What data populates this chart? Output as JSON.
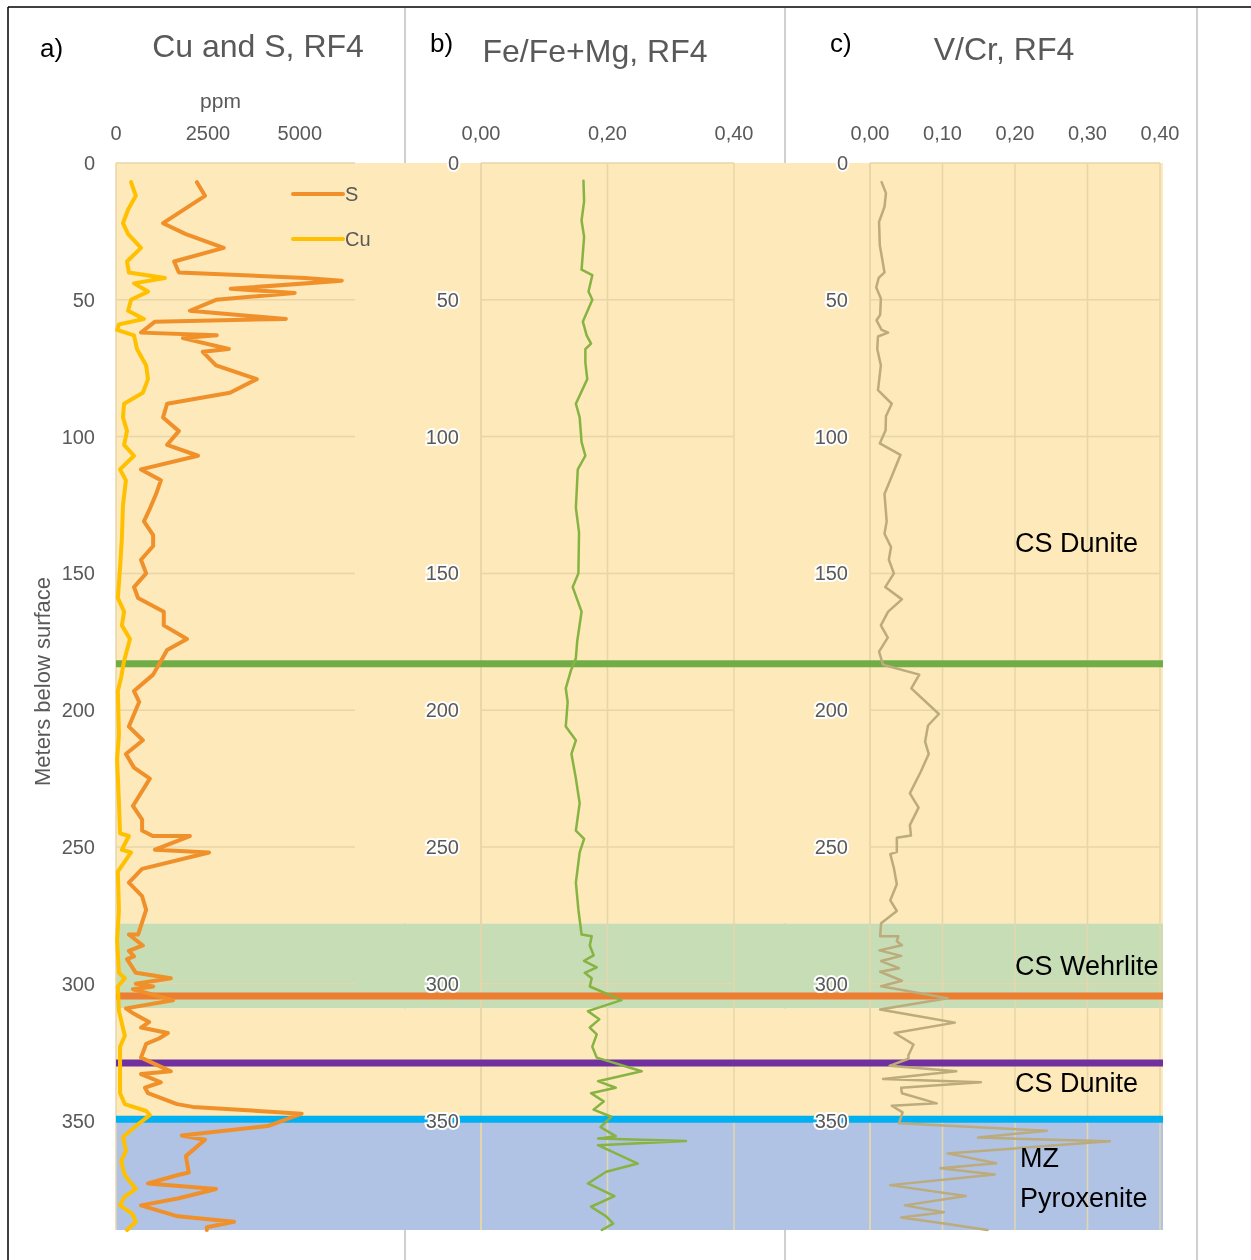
{
  "chart_data": [
    {
      "type": "line",
      "title": "Cu and S, RF4",
      "xlabel": "ppm",
      "ylabel": "Meters below surface",
      "annotations": [
        "a)"
      ],
      "xlim": [
        0,
        6500
      ],
      "xticks": [
        0,
        2500,
        5000
      ],
      "ylim": [
        390,
        0
      ],
      "yticks": [
        0,
        50,
        100,
        150,
        200,
        250,
        300,
        350
      ],
      "grid": "y",
      "legend": "top right",
      "series": [
        {
          "name": "S",
          "color": "#f0902a",
          "x": [
            2200,
            2420,
            1280,
            1900,
            2930,
            1580,
            1710,
            5140,
            6140,
            3120,
            4860,
            2720,
            2010,
            4620,
            1060,
            680,
            2740,
            1820,
            3070,
            2360,
            2720,
            3830,
            3100,
            1390,
            1280,
            1710,
            1390,
            2230,
            680,
            1220,
            1090,
            900,
            760,
            1010,
            1010,
            680,
            820,
            490,
            600,
            1300,
            1300,
            1930,
            1390,
            1010,
            490,
            630,
            350,
            730,
            270,
            490,
            920,
            460,
            710,
            710,
            1000,
            2010,
            1060,
            2530,
            710,
            350,
            710,
            820,
            600,
            350,
            730,
            350,
            490,
            300,
            540,
            1490,
            540,
            1010,
            460,
            1550,
            270,
            490,
            900,
            680,
            1410,
            1170,
            820,
            680,
            1490,
            680,
            1220,
            790,
            870,
            1660,
            2090,
            5050,
            4130,
            1790,
            2420,
            1900,
            1980,
            1660,
            870,
            2720,
            1680,
            680,
            1680,
            3210,
            2470,
            2470
          ],
          "values": [
            7,
            12,
            22,
            26,
            31,
            36,
            40,
            42,
            43,
            46,
            47.5,
            50,
            54,
            57,
            58,
            62,
            63,
            64,
            68,
            69,
            74,
            79,
            84,
            88,
            93,
            98,
            103,
            107,
            112,
            116,
            121,
            127,
            131,
            136,
            140,
            145,
            150,
            155,
            159,
            164,
            169,
            174,
            178,
            187,
            193,
            197,
            206,
            211,
            216,
            221,
            225,
            235,
            240,
            244,
            246,
            246,
            251,
            252,
            258,
            263,
            268,
            273,
            282,
            282,
            286,
            288,
            290,
            291,
            296,
            298,
            300,
            301,
            302,
            306,
            309,
            311,
            314,
            316,
            318,
            320,
            322,
            327,
            332,
            333,
            336,
            338,
            340,
            344,
            345,
            347.5,
            352,
            355.5,
            357,
            363,
            369,
            370,
            373,
            375,
            378.5,
            381,
            385,
            387,
            389,
            390
          ]
        },
        {
          "name": "Cu",
          "color": "#ffc000",
          "x": [
            410,
            540,
            330,
            190,
            330,
            680,
            300,
            350,
            1330,
            490,
            870,
            410,
            330,
            760,
            80,
            30,
            490,
            570,
            820,
            870,
            730,
            220,
            190,
            300,
            220,
            490,
            110,
            270,
            190,
            160,
            110,
            50,
            220,
            160,
            380,
            220,
            140,
            50,
            80,
            30,
            80,
            110,
            350,
            160,
            410,
            50,
            80,
            30,
            80,
            240,
            50,
            80,
            240,
            110,
            110,
            240,
            820,
            920,
            540,
            190,
            270,
            140,
            240,
            540,
            220,
            110,
            440,
            540,
            300
          ],
          "values": [
            7,
            12,
            17,
            22,
            26,
            31,
            36,
            40,
            42,
            44,
            47,
            50,
            54,
            57,
            59,
            61,
            63,
            68,
            74,
            79,
            84,
            88,
            93,
            98,
            103,
            107,
            112,
            116,
            125,
            137,
            148,
            159,
            164,
            169,
            174,
            182,
            188,
            193,
            209,
            218,
            234,
            245,
            246,
            251,
            252,
            259,
            273,
            284,
            296,
            298,
            301,
            310,
            319,
            323,
            340,
            344,
            346.5,
            348,
            352,
            356,
            361,
            365,
            370,
            375,
            378,
            381,
            384,
            387,
            390
          ]
        }
      ],
      "bands": [
        {
          "axis": "y",
          "from": 0,
          "to": 278,
          "color": "#fde9b9"
        },
        {
          "axis": "y",
          "from": 278,
          "to": 309,
          "color": "#c6ddb6"
        },
        {
          "axis": "y",
          "from": 309,
          "to": 350,
          "color": "#fde9b9"
        },
        {
          "axis": "y",
          "from": 350,
          "to": 390,
          "color": "#b0c3e5"
        }
      ],
      "ref_lines": [
        {
          "axis": "y",
          "value": 183,
          "color": "#70ad47"
        },
        {
          "axis": "y",
          "value": 304.5,
          "color": "#ed7d31"
        },
        {
          "axis": "y",
          "value": 329,
          "color": "#7030a0"
        },
        {
          "axis": "y",
          "value": 349.5,
          "color": "#00b0f0"
        }
      ]
    },
    {
      "type": "line",
      "title": "Fe/Fe+Mg, RF4",
      "annotations": [
        "b)"
      ],
      "xlim": [
        0,
        0.4
      ],
      "xticks": [
        {
          "value": 0,
          "label": "0,00"
        },
        {
          "value": 0.2,
          "label": "0,20"
        },
        {
          "value": 0.4,
          "label": "0,40"
        }
      ],
      "ylim": [
        390,
        0
      ],
      "yticks": [
        0,
        50,
        100,
        150,
        200,
        250,
        300,
        350
      ],
      "grid": true,
      "series": [
        {
          "color": "#86b341",
          "x": [
            0.162,
            0.163,
            0.159,
            0.163,
            0.159,
            0.176,
            0.17,
            0.176,
            0.161,
            0.167,
            0.174,
            0.165,
            0.165,
            0.168,
            0.15,
            0.156,
            0.159,
            0.165,
            0.153,
            0.15,
            0.155,
            0.154,
            0.145,
            0.159,
            0.152,
            0.15,
            0.142,
            0.134,
            0.137,
            0.134,
            0.15,
            0.143,
            0.15,
            0.156,
            0.15,
            0.163,
            0.156,
            0.15,
            0.154,
            0.159,
            0.175,
            0.172,
            0.178,
            0.163,
            0.183,
            0.164,
            0.175,
            0.172,
            0.222,
            0.169,
            0.187,
            0.172,
            0.183,
            0.176,
            0.183,
            0.254,
            0.185,
            0.213,
            0.174,
            0.194,
            0.178,
            0.206,
            0.189,
            0.213,
            0.185,
            0.324,
            0.185,
            0.248,
            0.198,
            0.169,
            0.211,
            0.174,
            0.198,
            0.209,
            0.191
          ],
          "values": [
            6.5,
            14,
            21,
            27,
            39,
            41,
            47,
            50,
            58,
            63,
            66,
            68,
            73,
            79,
            88,
            93,
            102,
            107,
            112,
            126,
            135,
            150,
            155,
            164,
            175,
            181,
            185.6,
            192,
            197,
            206,
            211,
            216,
            225,
            234,
            244,
            247,
            252,
            263,
            273,
            282,
            282.6,
            286,
            289.6,
            291.6,
            294,
            296,
            298,
            301,
            306,
            310,
            313,
            316,
            318.5,
            323,
            327,
            332,
            335.6,
            338,
            340,
            343,
            346,
            348.6,
            352.4,
            355.7,
            356.6,
            357.5,
            359,
            365.7,
            368.7,
            373,
            377.6,
            381.5,
            385,
            387.7,
            390
          ]
        }
      ],
      "bands": [
        {
          "axis": "y",
          "from": 0,
          "to": 278,
          "color": "#fde9b9"
        },
        {
          "axis": "y",
          "from": 278,
          "to": 309,
          "color": "#c6ddb6"
        },
        {
          "axis": "y",
          "from": 309,
          "to": 350,
          "color": "#fde9b9"
        },
        {
          "axis": "y",
          "from": 350,
          "to": 390,
          "color": "#b0c3e5"
        }
      ],
      "ref_lines": [
        {
          "axis": "y",
          "value": 183,
          "color": "#70ad47"
        },
        {
          "axis": "y",
          "value": 304.5,
          "color": "#ed7d31"
        },
        {
          "axis": "y",
          "value": 329,
          "color": "#7030a0"
        },
        {
          "axis": "y",
          "value": 349.5,
          "color": "#00b0f0"
        }
      ]
    },
    {
      "type": "line",
      "title": "V/Cr, RF4",
      "annotations": [
        "c)"
      ],
      "xlim": [
        0,
        0.4
      ],
      "xticks": [
        {
          "value": 0,
          "label": "0,00"
        },
        {
          "value": 0.1,
          "label": "0,10"
        },
        {
          "value": 0.2,
          "label": "0,20"
        },
        {
          "value": 0.3,
          "label": "0,30"
        },
        {
          "value": 0.4,
          "label": "0,40"
        }
      ],
      "ylim": [
        390,
        0
      ],
      "yticks": [
        0,
        50,
        100,
        150,
        200,
        250,
        300,
        350
      ],
      "grid": true,
      "series": [
        {
          "color": "#bcab7b",
          "x": [
            0.016,
            0.022,
            0.02,
            0.0125,
            0.0135,
            0.02,
            0.012,
            0.0086,
            0.015,
            0.014,
            0.009,
            0.016,
            0.025,
            0.011,
            0.01,
            0.015,
            0.011,
            0.03,
            0.022,
            0.0215,
            0.0135,
            0.042,
            0.02,
            0.023,
            0.02,
            0.029,
            0.026,
            0.033,
            0.021,
            0.044,
            0.025,
            0.015,
            0.0245,
            0.0125,
            0.018,
            0.068,
            0.057,
            0.095,
            0.08,
            0.076,
            0.081,
            0.07,
            0.055,
            0.067,
            0.055,
            0.0565,
            0.037,
            0.037,
            0.028,
            0.033,
            0.037,
            0.028,
            0.037,
            0.0153,
            0.014,
            0.039,
            0.037,
            0.044,
            0.013,
            0.043,
            0.0153,
            0.04,
            0.014,
            0.044,
            0.0153,
            0.107,
            0.014,
            0.117,
            0.034,
            0.06,
            0.053,
            0.053,
            0.027,
            0.119,
            0.018,
            0.153,
            0.043,
            0.044,
            0.092,
            0.03,
            0.045,
            0.04,
            0.244,
            0.149,
            0.331,
            0.107,
            0.174,
            0.097,
            0.172,
            0.028,
            0.132,
            0.048,
            0.102,
            0.043,
            0.102,
            0.162
          ],
          "values": [
            7,
            11,
            16,
            21.5,
            30,
            40,
            42,
            45.5,
            49.5,
            55.5,
            57.5,
            61,
            62,
            63.4,
            68,
            74,
            83,
            88,
            92.6,
            97.7,
            102.5,
            106.7,
            121,
            131,
            135.5,
            140.4,
            145,
            150,
            155,
            159.5,
            164,
            169,
            173.5,
            178.6,
            183.4,
            187,
            192,
            201.4,
            205.6,
            211.5,
            216,
            222.5,
            230.4,
            235.6,
            242,
            245.8,
            246.6,
            251.8,
            252.6,
            257.8,
            263.6,
            269.5,
            273.4,
            277.9,
            282.6,
            282.6,
            284.5,
            285.9,
            287.8,
            289.8,
            291.7,
            294.3,
            295.6,
            298.9,
            300.9,
            305.3,
            309.4,
            314.2,
            318,
            322.2,
            326.1,
            327.4,
            330,
            332,
            334.8,
            336,
            338,
            340,
            343.7,
            344.6,
            347,
            351,
            353.7,
            356.2,
            357.6,
            362,
            365.6,
            367.4,
            369.7,
            373.6,
            377.6,
            381,
            383.5,
            385.4,
            387.6,
            390
          ]
        }
      ],
      "bands": [
        {
          "axis": "y",
          "from": 0,
          "to": 278,
          "color": "#fde9b9",
          "label": "CS Dunite"
        },
        {
          "axis": "y",
          "from": 278,
          "to": 309,
          "color": "#c6ddb6",
          "label": "CS Wehrlite"
        },
        {
          "axis": "y",
          "from": 309,
          "to": 350,
          "color": "#fde9b9",
          "label": "CS Dunite"
        },
        {
          "axis": "y",
          "from": 350,
          "to": 390,
          "color": "#b0c3e5",
          "label": "MZ Pyroxenite"
        }
      ],
      "ref_lines": [
        {
          "axis": "y",
          "value": 183,
          "color": "#70ad47"
        },
        {
          "axis": "y",
          "value": 304.5,
          "color": "#ed7d31"
        },
        {
          "axis": "y",
          "value": 329,
          "color": "#7030a0"
        },
        {
          "axis": "y",
          "value": 349.5,
          "color": "#00b0f0"
        }
      ]
    }
  ]
}
